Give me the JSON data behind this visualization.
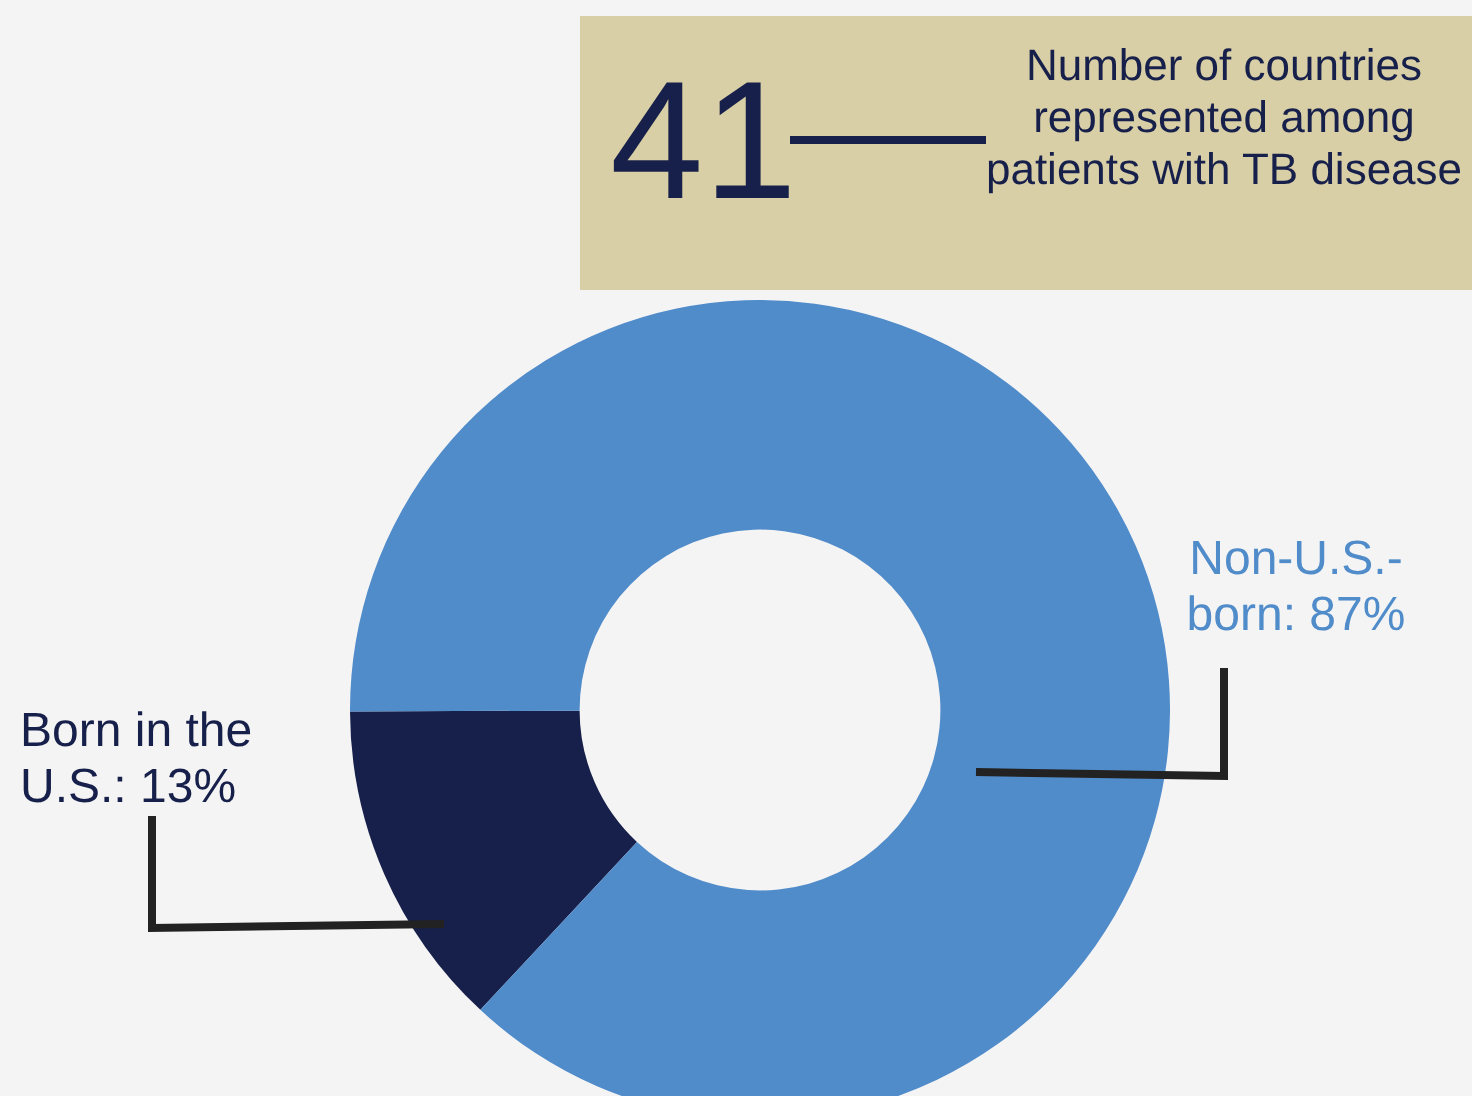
{
  "chart_data": {
    "type": "donut",
    "categories": [
      "Born in the U.S.",
      "Non-U.S.-born"
    ],
    "values": [
      13,
      87
    ],
    "colors": [
      "#16204a",
      "#508bca"
    ],
    "value_labels": [
      "13%",
      "87%"
    ],
    "annotations": [
      "41",
      "Number of countries represented among patients with TB disease"
    ]
  }
}
